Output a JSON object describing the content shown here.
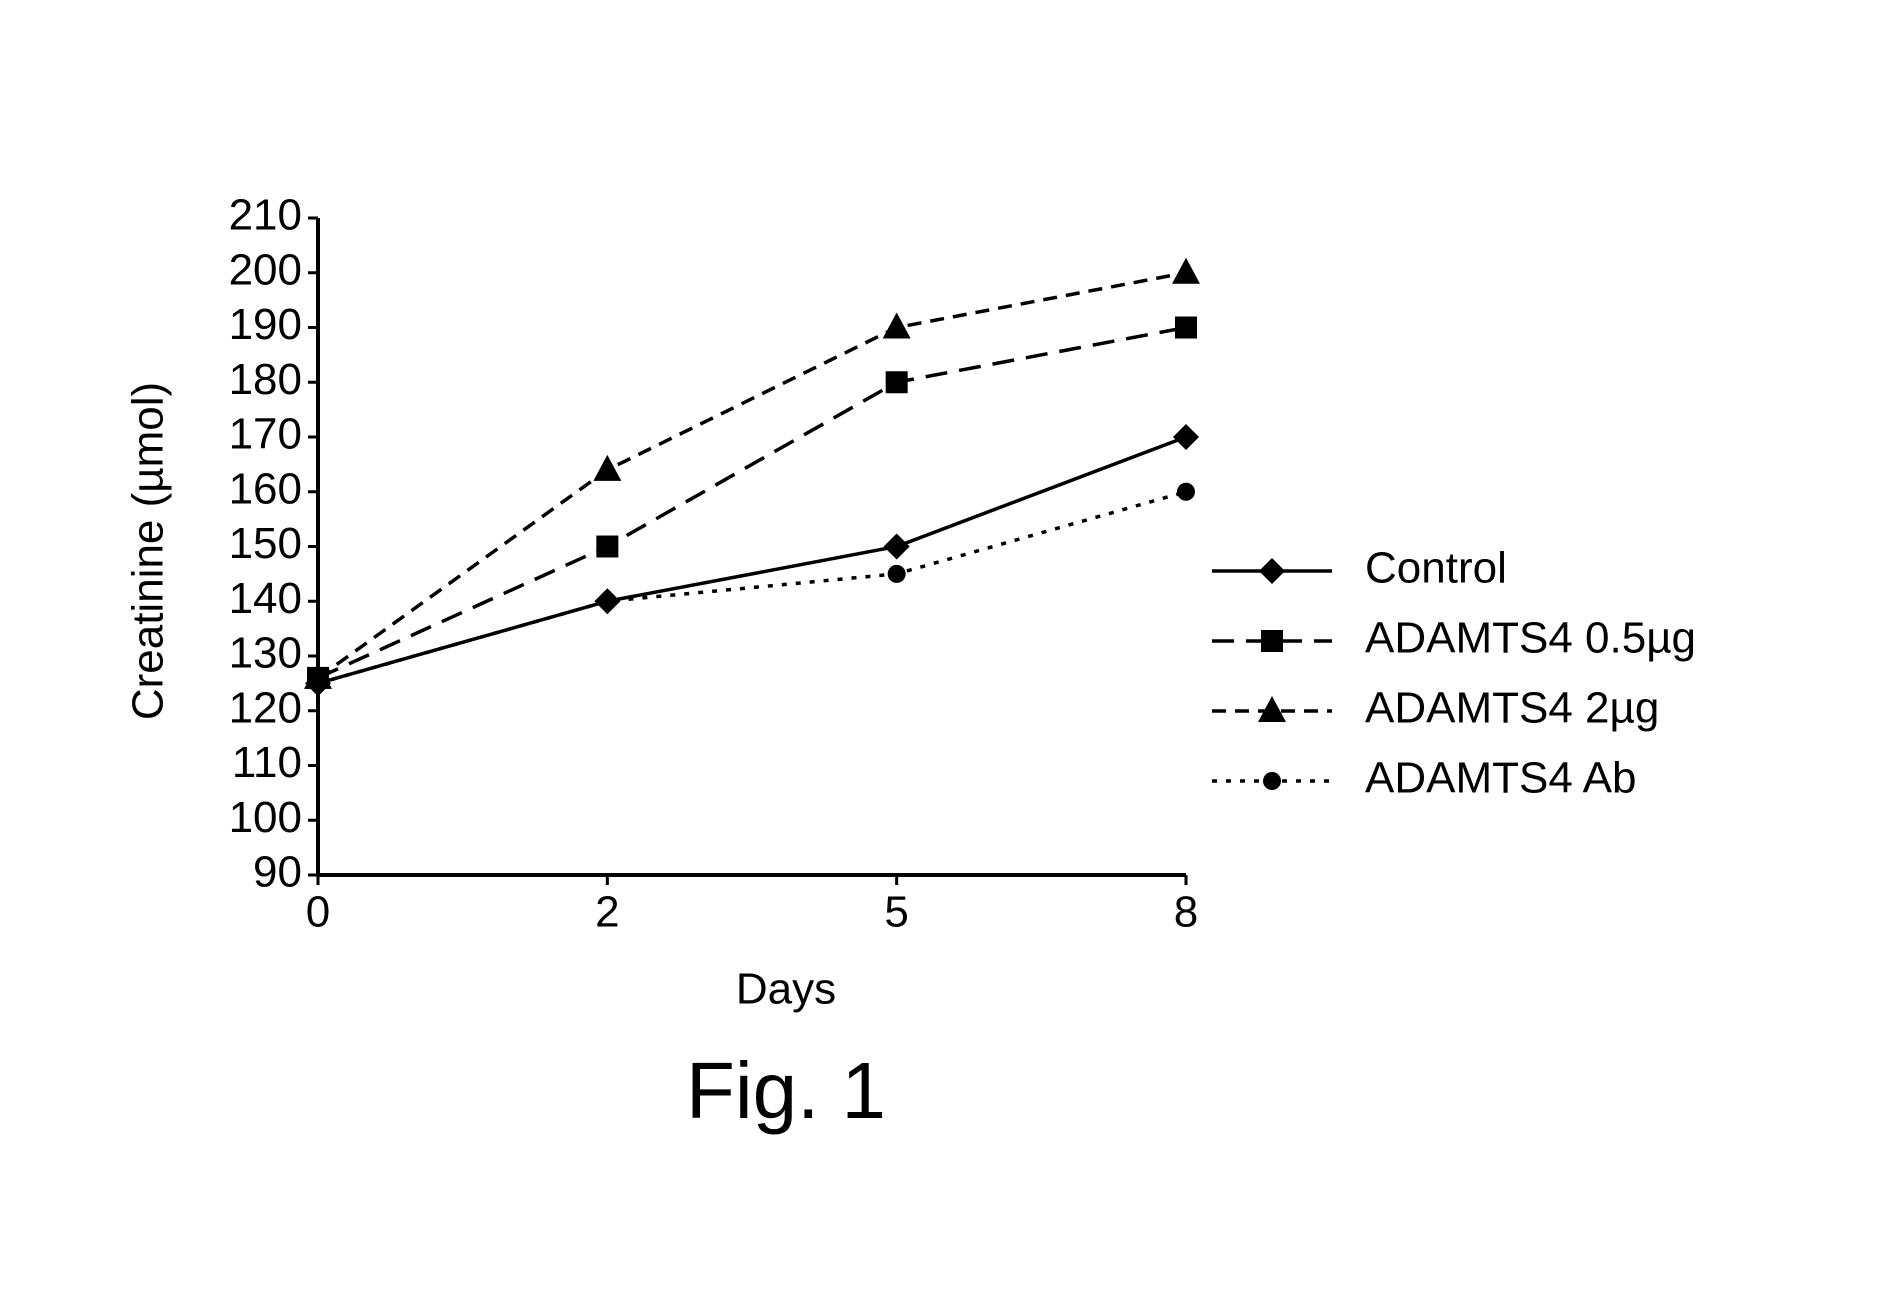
{
  "chart_data": {
    "type": "line",
    "caption": "Fig. 1",
    "xlabel": "Days",
    "ylabel": "Creatinine (µmol)",
    "categories": [
      "0",
      "2",
      "5",
      "8"
    ],
    "ylim": [
      90,
      210
    ],
    "yticks": [
      90,
      100,
      110,
      120,
      130,
      140,
      150,
      160,
      170,
      180,
      190,
      200,
      210
    ],
    "series": [
      {
        "name": "Control",
        "color": "#000000",
        "dash": "none",
        "marker": "diamond",
        "values": [
          125,
          140,
          150,
          170
        ]
      },
      {
        "name": "ADAMTS4 0.5µg",
        "color": "#000000",
        "dash": "22 12",
        "marker": "square",
        "values": [
          126,
          150,
          180,
          190
        ]
      },
      {
        "name": "ADAMTS4 2µg",
        "color": "#000000",
        "dash": "14 9",
        "marker": "triangle",
        "values": [
          126,
          164,
          190,
          200
        ]
      },
      {
        "name": "ADAMTS4 Ab",
        "color": "#000000",
        "dash": "5 9",
        "marker": "circle",
        "values": [
          125,
          140,
          145,
          160
        ]
      }
    ]
  }
}
